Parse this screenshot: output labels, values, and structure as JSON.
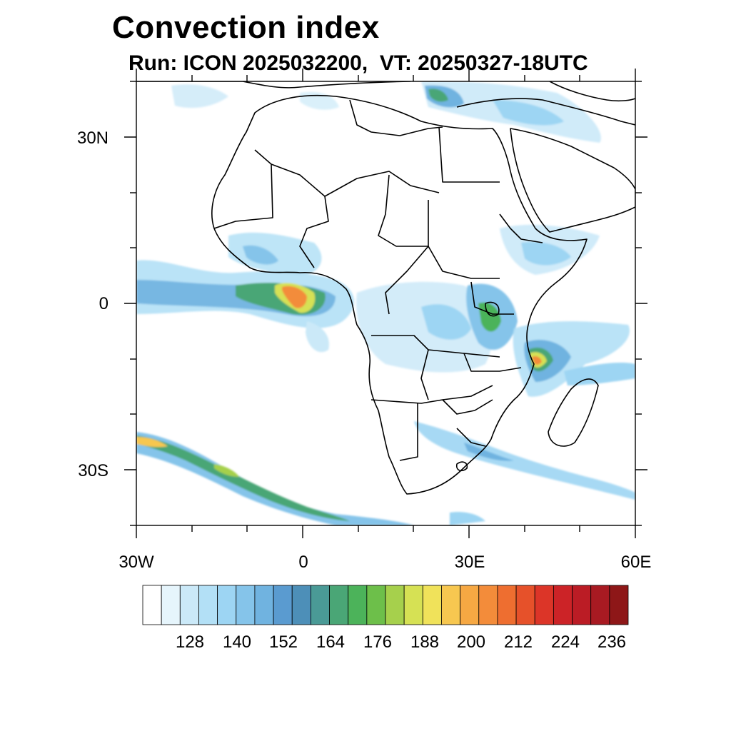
{
  "title": "Convection index",
  "subtitle": "Run: ICON 2025032200,  VT: 20250327-18UTC",
  "lat_labels": [
    "30N",
    "0",
    "30S"
  ],
  "lon_labels": [
    "30W",
    "0",
    "30E",
    "60E"
  ],
  "colorbar": {
    "labels": [
      "128",
      "140",
      "152",
      "164",
      "176",
      "188",
      "200",
      "212",
      "224",
      "236"
    ],
    "colors": [
      "#ffffff",
      "#e6f5fc",
      "#cbe9f8",
      "#b3e0f6",
      "#9dd5f3",
      "#85c4ea",
      "#70b3e0",
      "#5a9bd0",
      "#4d8fb8",
      "#4a9a96",
      "#4aa676",
      "#4cb35a",
      "#6dbf4a",
      "#a6d04c",
      "#d6e154",
      "#f0e25a",
      "#f7c750",
      "#f6a843",
      "#f38c3a",
      "#ee6e30",
      "#e6512a",
      "#dc3528",
      "#cc2327",
      "#bb1c25",
      "#a81a22",
      "#8e1718"
    ]
  }
}
